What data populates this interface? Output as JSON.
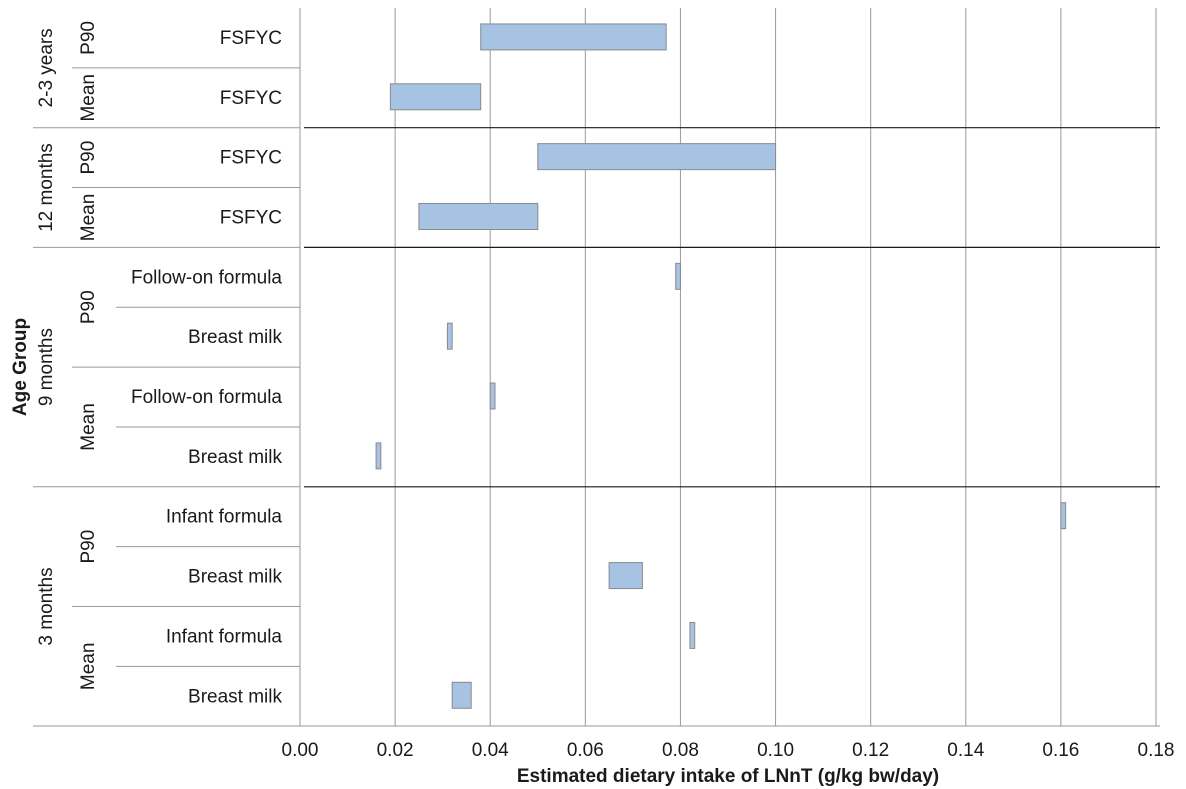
{
  "chart_data": {
    "type": "bar",
    "orientation": "horizontal",
    "bar_style": "floating-range",
    "xlabel": "Estimated dietary intake of LNnT (g/kg bw/day)",
    "ylabel": "Age Group",
    "xlim": [
      0,
      0.18
    ],
    "x_ticks": [
      "0.00",
      "0.02",
      "0.04",
      "0.06",
      "0.08",
      "0.10",
      "0.12",
      "0.14",
      "0.16",
      "0.18"
    ],
    "grid": "vertical",
    "bar_color": "#a6c3e3",
    "age_groups": [
      "2-3 years",
      "12 months",
      "9 months",
      "3 months"
    ],
    "statistics": [
      "P90",
      "Mean"
    ],
    "rows": [
      {
        "age": "2-3 years",
        "stat": "P90",
        "category": "FSFYC",
        "low": 0.038,
        "high": 0.077
      },
      {
        "age": "2-3 years",
        "stat": "Mean",
        "category": "FSFYC",
        "low": 0.019,
        "high": 0.038
      },
      {
        "age": "12 months",
        "stat": "P90",
        "category": "FSFYC",
        "low": 0.05,
        "high": 0.1
      },
      {
        "age": "12 months",
        "stat": "Mean",
        "category": "FSFYC",
        "low": 0.025,
        "high": 0.05
      },
      {
        "age": "9 months",
        "stat": "P90",
        "category": "Follow-on formula",
        "low": 0.079,
        "high": 0.08
      },
      {
        "age": "9 months",
        "stat": "P90",
        "category": "Breast milk",
        "low": 0.031,
        "high": 0.032
      },
      {
        "age": "9 months",
        "stat": "Mean",
        "category": "Follow-on formula",
        "low": 0.04,
        "high": 0.041
      },
      {
        "age": "9 months",
        "stat": "Mean",
        "category": "Breast milk",
        "low": 0.016,
        "high": 0.017
      },
      {
        "age": "3 months",
        "stat": "P90",
        "category": "Infant formula",
        "low": 0.16,
        "high": 0.161
      },
      {
        "age": "3 months",
        "stat": "P90",
        "category": "Breast milk",
        "low": 0.065,
        "high": 0.072
      },
      {
        "age": "3 months",
        "stat": "Mean",
        "category": "Infant formula",
        "low": 0.082,
        "high": 0.083
      },
      {
        "age": "3 months",
        "stat": "Mean",
        "category": "Breast milk",
        "low": 0.032,
        "high": 0.036
      }
    ]
  }
}
